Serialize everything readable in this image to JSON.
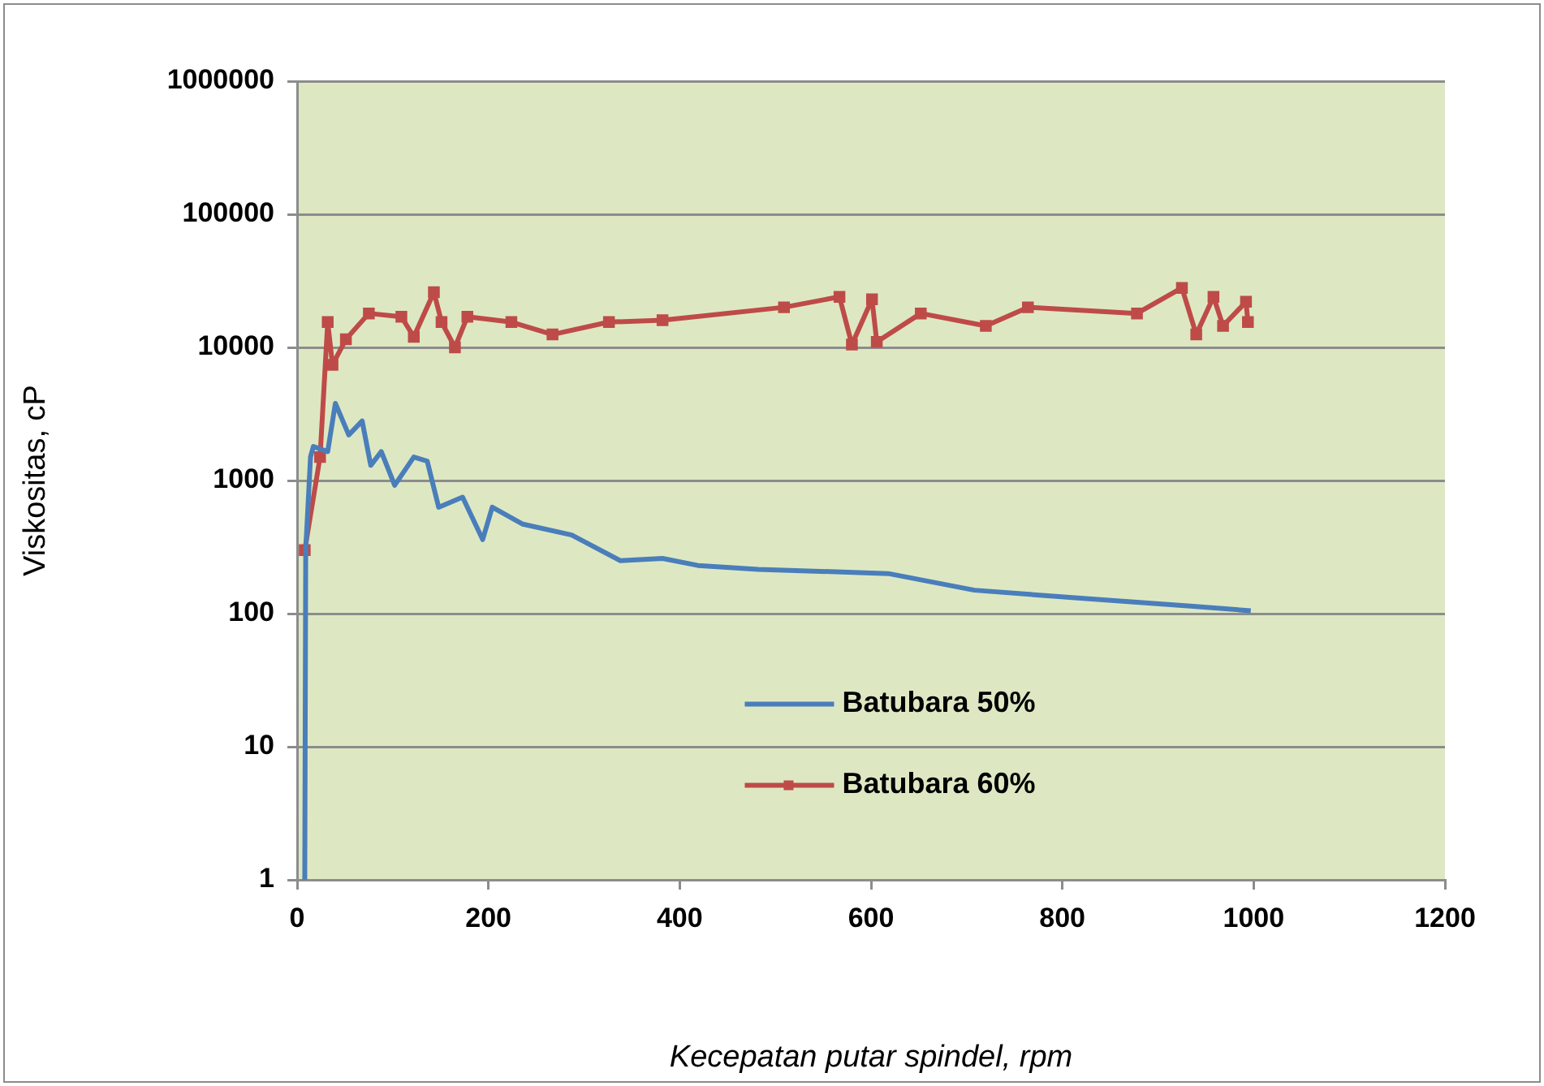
{
  "chart_data": {
    "type": "line",
    "xlabel": "Kecepatan putar spindel, rpm",
    "ylabel": "Viskositas, cP",
    "log": "y",
    "xlim": [
      0,
      1200
    ],
    "xticks": [
      0,
      200,
      400,
      600,
      800,
      1000,
      1200
    ],
    "ylim": [
      1,
      1000000
    ],
    "yticks": [
      1,
      10,
      100,
      1000,
      10000,
      100000,
      1000000
    ],
    "grid": "y",
    "legend": "bottom",
    "series": [
      {
        "name": "Batubara 50%",
        "color": "#4a7ebb",
        "marker": "none",
        "x": [
          8,
          9,
          14,
          17,
          32,
          40,
          54,
          68,
          77,
          88,
          102,
          122,
          136,
          148,
          173,
          194,
          204,
          236,
          287,
          338,
          382,
          419,
          482,
          618,
          708,
          822,
          934,
          997
        ],
        "values": [
          1,
          300,
          1500,
          1800,
          1650,
          3800,
          2200,
          2800,
          1300,
          1650,
          920,
          1500,
          1400,
          630,
          750,
          360,
          630,
          470,
          390,
          250,
          260,
          230,
          215,
          200,
          150,
          130,
          114,
          105
        ]
      },
      {
        "name": "Batubara 60%",
        "color": "#be4b48",
        "marker": "square",
        "x": [
          8,
          24,
          32,
          37,
          51,
          75,
          109,
          122,
          143,
          151,
          165,
          178,
          224,
          267,
          326,
          382,
          509,
          567,
          580,
          601,
          606,
          652,
          720,
          764,
          878,
          925,
          940,
          958,
          968,
          992,
          994
        ],
        "values": [
          300,
          1500,
          15500,
          7400,
          11500,
          18000,
          17000,
          12000,
          26000,
          15500,
          10000,
          17000,
          15500,
          12500,
          15500,
          16000,
          20000,
          24000,
          10500,
          23000,
          11000,
          18000,
          14500,
          20000,
          18000,
          28000,
          12500,
          24000,
          14500,
          22000,
          15500
        ]
      }
    ]
  }
}
